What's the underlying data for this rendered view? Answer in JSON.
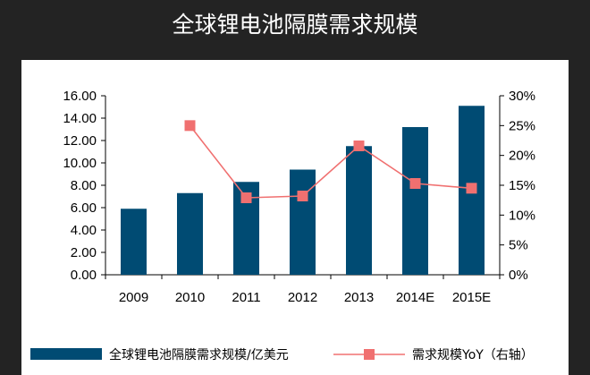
{
  "title": "全球锂电池隔膜需求规模",
  "colors": {
    "bar": "#004b73",
    "line": "#f07070",
    "background": "#232323",
    "panel": "#ffffff"
  },
  "chart_data": {
    "type": "bar",
    "categories": [
      "2009",
      "2010",
      "2011",
      "2012",
      "2013",
      "2014E",
      "2015E"
    ],
    "series": [
      {
        "name": "全球锂电池隔膜需求规模/亿美元",
        "type": "bar",
        "axis": "left",
        "values": [
          5.9,
          7.3,
          8.3,
          9.4,
          11.5,
          13.2,
          15.1
        ]
      },
      {
        "name": "需求规模YoY（右轴）",
        "type": "line",
        "axis": "right",
        "values": [
          null,
          25.0,
          12.9,
          13.2,
          21.6,
          15.3,
          14.5
        ]
      }
    ],
    "ylim": [
      0,
      16
    ],
    "yticks": [
      "0.00",
      "2.00",
      "4.00",
      "6.00",
      "8.00",
      "10.00",
      "12.00",
      "14.00",
      "16.00"
    ],
    "y2lim": [
      0,
      30
    ],
    "y2ticks": [
      "0%",
      "5%",
      "10%",
      "15%",
      "20%",
      "25%",
      "30%"
    ],
    "grid": false,
    "legend": "bottom"
  }
}
